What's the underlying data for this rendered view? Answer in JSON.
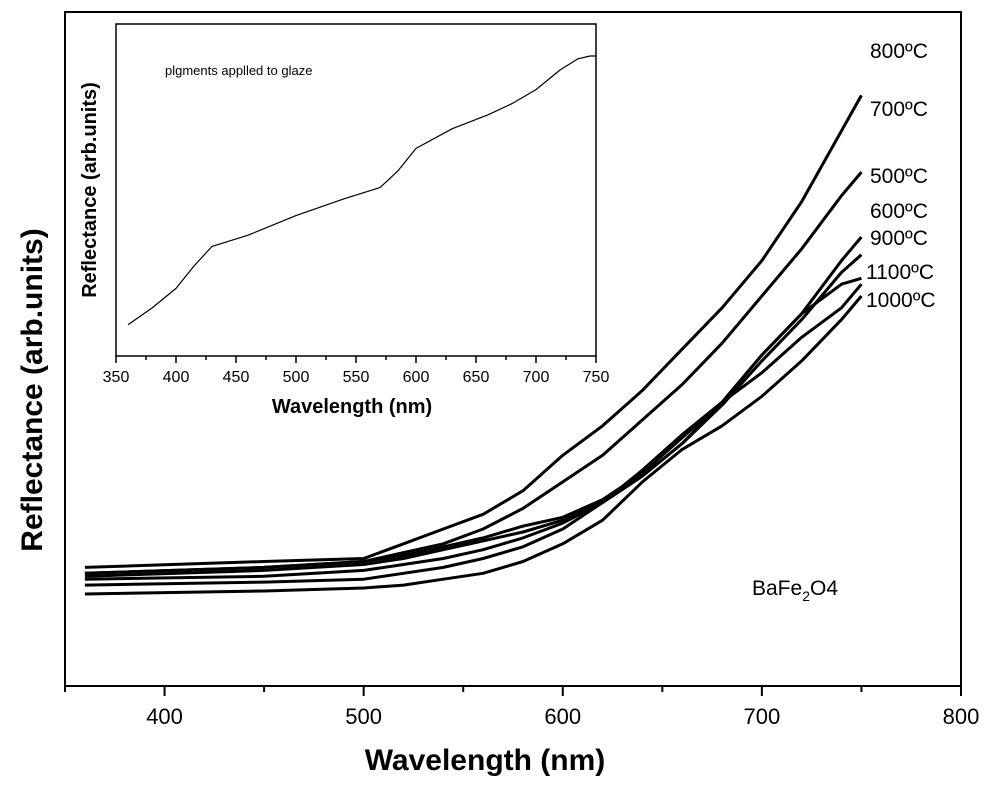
{
  "chart_data": [
    {
      "type": "line",
      "title": "",
      "xlabel": "Wavelength (nm)",
      "ylabel": "Reflectance (arb.units)",
      "xlim": [
        350,
        800
      ],
      "ylim": [
        0,
        100
      ],
      "xticks": [
        400,
        500,
        600,
        700,
        800
      ],
      "xtick_labels": [
        "400",
        "500",
        "600",
        "700",
        "800"
      ],
      "y_tick_labels_shown": false,
      "grid": false,
      "legend": "labels at right end of curves",
      "annotation": {
        "text_main": "BaFe",
        "text_sub": "2",
        "text_tail": "O4"
      },
      "series": [
        {
          "name": "800ºC",
          "x": [
            360,
            450,
            500,
            520,
            540,
            560,
            580,
            600,
            620,
            640,
            660,
            680,
            700,
            720,
            740,
            750
          ],
          "y": [
            14,
            15,
            15.5,
            18,
            20.5,
            23,
            27,
            33,
            38,
            44,
            51,
            58,
            66,
            76,
            88,
            94
          ]
        },
        {
          "name": "700ºC",
          "x": [
            360,
            450,
            500,
            520,
            540,
            560,
            580,
            600,
            620,
            640,
            660,
            680,
            700,
            720,
            740,
            750
          ],
          "y": [
            13,
            14,
            15,
            16.5,
            18,
            20.5,
            24,
            28.5,
            33,
            39,
            45,
            52,
            60,
            68,
            77,
            81
          ]
        },
        {
          "name": "500ºC",
          "x": [
            360,
            450,
            500,
            520,
            540,
            560,
            580,
            600,
            620,
            640,
            660,
            680,
            700,
            720,
            740,
            750
          ],
          "y": [
            13,
            14,
            15,
            16,
            17.5,
            19,
            21,
            22.5,
            25.5,
            30,
            36,
            42,
            50,
            57,
            66,
            70
          ]
        },
        {
          "name": "600ºC",
          "x": [
            360,
            450,
            500,
            520,
            540,
            560,
            580,
            600,
            620,
            640,
            660,
            680,
            700,
            720,
            740,
            750
          ],
          "y": [
            12.5,
            13.5,
            14.5,
            15.5,
            17,
            18.5,
            20,
            22,
            25,
            29.5,
            35,
            41.5,
            49,
            56,
            64,
            67
          ]
        },
        {
          "name": "900ºC",
          "x": [
            360,
            450,
            500,
            520,
            540,
            560,
            580,
            600,
            620,
            640,
            660,
            680,
            700,
            720,
            740,
            750
          ],
          "y": [
            12,
            12.5,
            13.5,
            14.5,
            15.5,
            17,
            19,
            21.5,
            25,
            29.5,
            35,
            42,
            50,
            57,
            62,
            63
          ]
        },
        {
          "name": "1100ºC",
          "x": [
            360,
            450,
            500,
            520,
            540,
            560,
            580,
            600,
            620,
            640,
            660,
            680,
            700,
            720,
            740,
            750
          ],
          "y": [
            11,
            11.5,
            12,
            13,
            14,
            15.5,
            17.5,
            20.5,
            25,
            30.5,
            36.5,
            42,
            47,
            53,
            58,
            62
          ]
        },
        {
          "name": "1000ºC",
          "x": [
            360,
            450,
            500,
            520,
            540,
            560,
            580,
            600,
            620,
            640,
            660,
            680,
            700,
            720,
            740,
            750
          ],
          "y": [
            9.5,
            10,
            10.5,
            11,
            12,
            13,
            15,
            18,
            22,
            28.5,
            34,
            38,
            43,
            49,
            56,
            60
          ]
        }
      ]
    },
    {
      "type": "line",
      "title": "",
      "annotation": "plgments applled to glaze",
      "xlabel": "Wavelength (nm)",
      "ylabel": "Reflectance (arb.units)",
      "xlim": [
        350,
        750
      ],
      "ylim": [
        0,
        100
      ],
      "xticks": [
        350,
        400,
        450,
        500,
        550,
        600,
        650,
        700,
        750
      ],
      "xtick_labels": [
        "350",
        "400",
        "450",
        "500",
        "550",
        "600",
        "650",
        "700",
        "750"
      ],
      "y_tick_labels_shown": false,
      "grid": false,
      "series": [
        {
          "x": [
            360,
            380,
            400,
            415,
            430,
            460,
            500,
            540,
            570,
            585,
            600,
            630,
            660,
            680,
            700,
            720,
            735,
            745,
            750
          ],
          "y": [
            9,
            15,
            22,
            30,
            37,
            41,
            48,
            54,
            58,
            64,
            72,
            79,
            84,
            88,
            93,
            100,
            104,
            105,
            105
          ]
        }
      ]
    }
  ]
}
